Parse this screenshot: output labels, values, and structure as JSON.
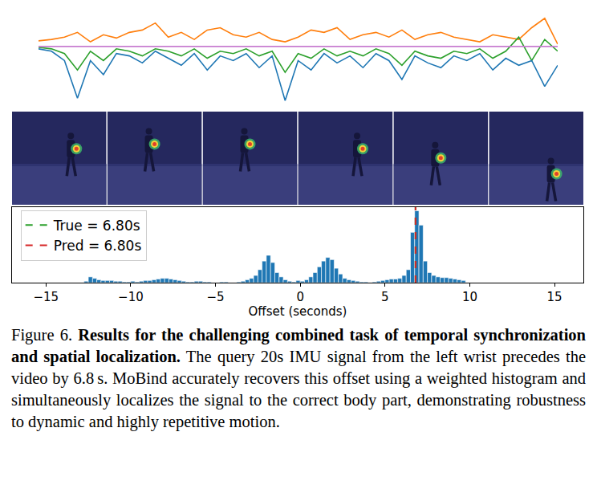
{
  "chart_data": [
    {
      "type": "line",
      "tick_labels": false,
      "grid": false,
      "xlim": [
        0,
        20
      ],
      "ylim": [
        -1.3,
        0.75
      ],
      "x": [
        0,
        0.5,
        1,
        1.5,
        2,
        2.5,
        3,
        3.5,
        4,
        4.5,
        5,
        5.5,
        6,
        6.5,
        7,
        7.5,
        8,
        8.5,
        9,
        9.5,
        10,
        10.5,
        11,
        11.5,
        12,
        12.5,
        13,
        13.5,
        14,
        14.5,
        15,
        15.5,
        16,
        16.5,
        17,
        17.5,
        18,
        18.5,
        19,
        19.5,
        20
      ],
      "series": [
        {
          "color": "#ff7f0e",
          "values": [
            0.12,
            0.15,
            0.2,
            0.3,
            0.1,
            0.25,
            0.18,
            0.3,
            0.35,
            0.5,
            0.2,
            0.3,
            0.15,
            0.35,
            0.4,
            0.25,
            0.2,
            0.3,
            0.15,
            0.1,
            0.2,
            0.35,
            0.3,
            0.4,
            0.15,
            0.25,
            0.3,
            0.2,
            0.35,
            0.15,
            0.25,
            0.3,
            0.2,
            0.15,
            0.1,
            0.25,
            0.2,
            0.15,
            0.4,
            0.6,
            0.05
          ]
        },
        {
          "color": "#2ca02c",
          "values": [
            -0.02,
            -0.05,
            -0.15,
            -0.5,
            -0.1,
            -0.3,
            -0.05,
            -0.1,
            -0.2,
            -0.05,
            -0.1,
            -0.2,
            -0.05,
            -0.25,
            -0.1,
            -0.15,
            -0.05,
            -0.2,
            -0.1,
            -0.55,
            -0.15,
            -0.25,
            -0.05,
            -0.2,
            -0.1,
            -0.2,
            -0.05,
            -0.15,
            -0.4,
            -0.1,
            -0.2,
            -0.25,
            -0.1,
            -0.15,
            -0.05,
            -0.25,
            -0.1,
            0.2,
            -0.3,
            0.15,
            -0.1
          ]
        },
        {
          "color": "#1f77b4",
          "values": [
            -0.05,
            -0.1,
            -0.3,
            -1.1,
            -0.3,
            -0.6,
            -0.15,
            -0.2,
            -0.35,
            -0.1,
            -0.25,
            -0.4,
            -0.15,
            -0.5,
            -0.2,
            -0.3,
            -0.15,
            -0.45,
            -0.2,
            -1.15,
            -0.3,
            -0.5,
            -0.15,
            -0.35,
            -0.2,
            -0.45,
            -0.15,
            -0.3,
            -0.7,
            -0.2,
            -0.35,
            -0.45,
            -0.2,
            -0.3,
            -0.15,
            -0.5,
            -0.25,
            -0.4,
            -0.3,
            -0.85,
            -0.4
          ]
        },
        {
          "color": "#c77cd0",
          "values": [
            0,
            0,
            0,
            0,
            0,
            0,
            0,
            0,
            0,
            0,
            0,
            0,
            0,
            0,
            0,
            0,
            0,
            0,
            0,
            0,
            0,
            0,
            0,
            0,
            0,
            0,
            0,
            0,
            0,
            0,
            0,
            0,
            0,
            0,
            0,
            0,
            0,
            0,
            0,
            0,
            0
          ]
        }
      ]
    },
    {
      "type": "histogram",
      "tick_labels": "x",
      "grid": false,
      "legend": "upper left",
      "x_label": "Offset (seconds)",
      "color": "#1f77b4",
      "xlim": [
        -17,
        16.7
      ],
      "ylim": [
        0,
        105
      ],
      "xticks": [
        {
          "value": -15,
          "label": "−15"
        },
        {
          "value": -10,
          "label": "−10"
        },
        {
          "value": -5,
          "label": "−5"
        },
        0,
        5,
        10,
        15
      ],
      "bins": [
        -12.75,
        -12.5,
        -12.25,
        -12,
        -11.75,
        -11.5,
        -11.25,
        -11,
        -10.75,
        -10.5,
        -10.25,
        -10,
        -9.75,
        -9.5,
        -9.25,
        -9,
        -8.75,
        -8.5,
        -8.25,
        -8,
        -7.75,
        -7.5,
        -7.25,
        -7,
        -6.75,
        -6.5,
        -6.25,
        -6,
        -5.75,
        -5.5,
        -5.25,
        -5,
        -4.75,
        -4.5,
        -4.25,
        -4,
        -3.75,
        -3.5,
        -3.25,
        -3,
        -2.75,
        -2.5,
        -2.25,
        -2,
        -1.75,
        -1.5,
        -1.25,
        -1,
        -0.75,
        -0.5,
        -0.25,
        0,
        0.25,
        0.5,
        0.75,
        1,
        1.25,
        1.5,
        1.75,
        2,
        2.25,
        2.5,
        2.75,
        3,
        3.25,
        3.5,
        3.75,
        4,
        4.25,
        4.5,
        4.75,
        5,
        5.25,
        5.5,
        5.75,
        6,
        6.25,
        6.5,
        6.75,
        7,
        7.25,
        7.5,
        7.75,
        8,
        8.25,
        8.5,
        8.75,
        9,
        9.25,
        9.5,
        9.75
      ],
      "counts": [
        2,
        8,
        6,
        4,
        3,
        3,
        3,
        2,
        2,
        1,
        1,
        2,
        1,
        2,
        3,
        3,
        4,
        5,
        6,
        6,
        5,
        4,
        3,
        2,
        1,
        1,
        2,
        2,
        1,
        1,
        0,
        0,
        1,
        1,
        0,
        0,
        1,
        2,
        4,
        6,
        10,
        18,
        30,
        38,
        28,
        14,
        8,
        4,
        2,
        1,
        3,
        2,
        4,
        8,
        14,
        22,
        30,
        35,
        32,
        20,
        12,
        6,
        4,
        3,
        2,
        1,
        1,
        0,
        1,
        2,
        3,
        4,
        5,
        5,
        6,
        10,
        18,
        70,
        100,
        80,
        30,
        14,
        10,
        8,
        7,
        7,
        6,
        5,
        4,
        3
      ],
      "vlines": [
        {
          "name": "True = 6.80s",
          "x": 6.8,
          "color": "#2ca02c",
          "line_style": "dashed"
        },
        {
          "name": "Pred = 6.80s",
          "x": 6.8,
          "color": "#d62728",
          "line_style": "dashed"
        }
      ]
    }
  ],
  "frames": {
    "count": 6
  },
  "caption": {
    "label": "Figure 6.",
    "bold": "Results for the challenging combined task of temporal synchronization and spatial localization.",
    "text": "The query 20s IMU signal from the left wrist precedes the video by 6.8 s. MoBind accurately recovers this offset using a weighted histogram and simultaneously localizes the signal to the correct body part, demonstrating robustness to dynamic and highly repetitive motion."
  }
}
